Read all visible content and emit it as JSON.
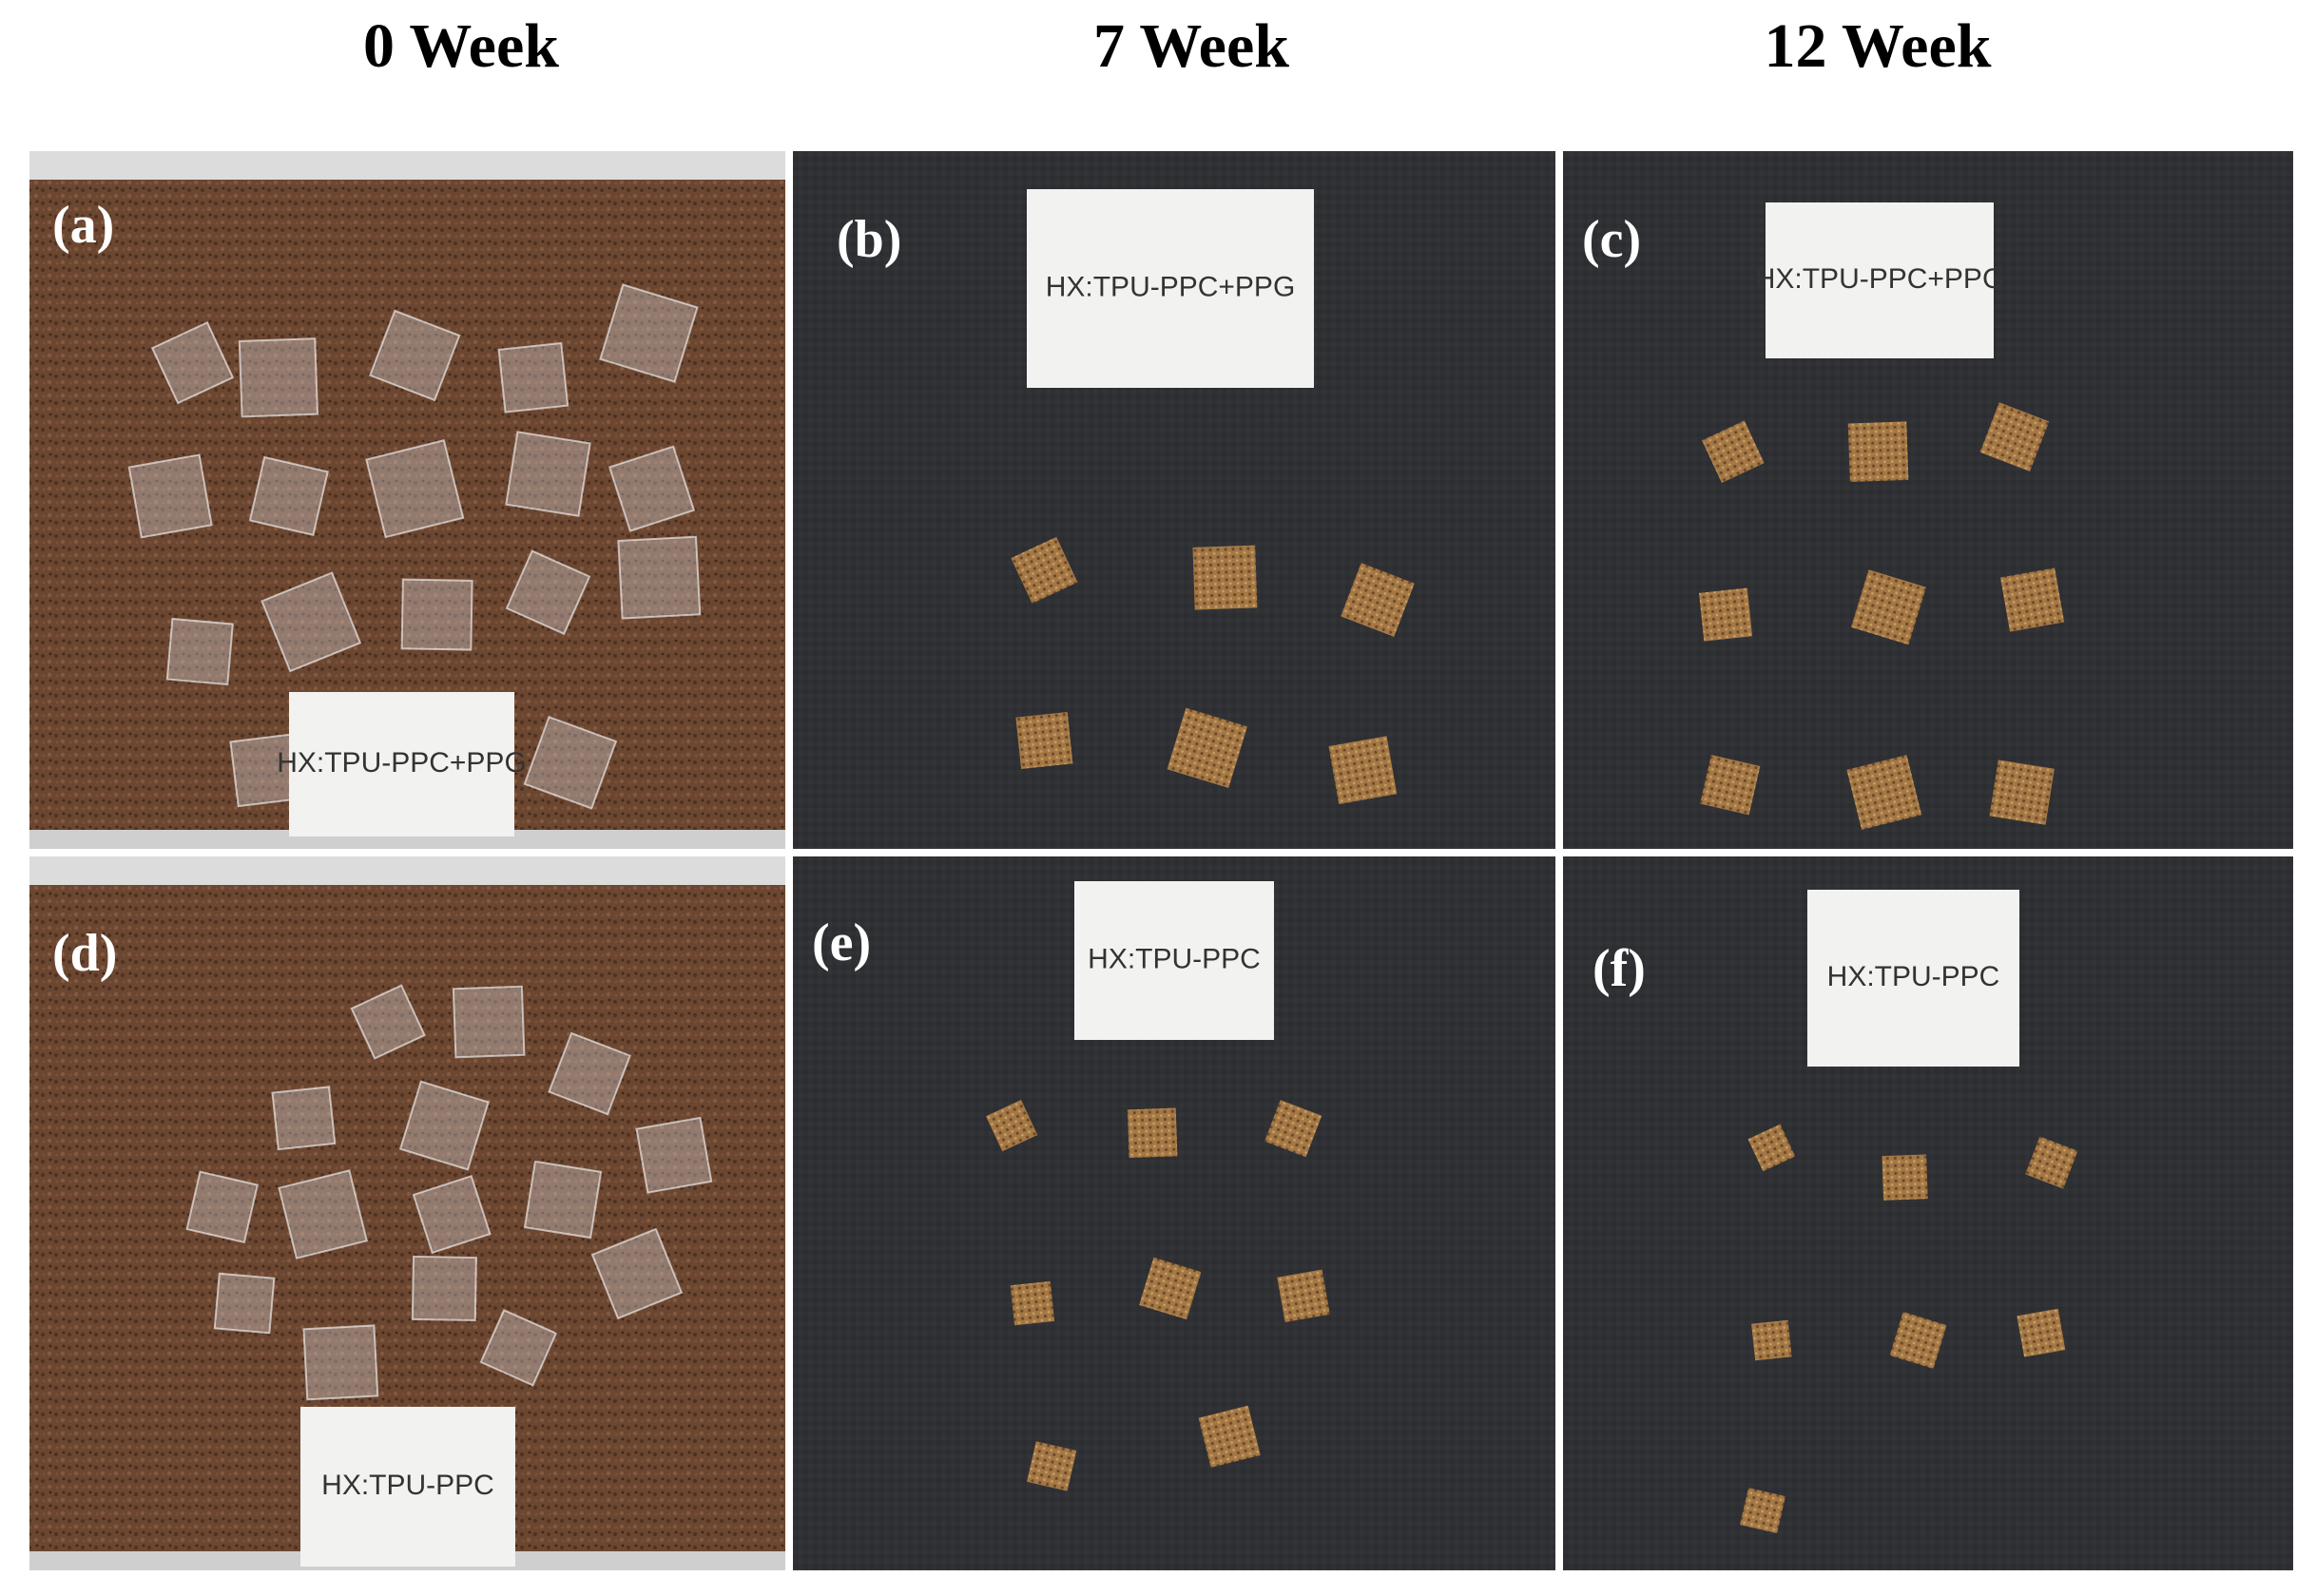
{
  "columns": [
    "0 Week",
    "7 Week",
    "12 Week"
  ],
  "panels": [
    {
      "label": "(a)",
      "card": "HX:TPU-PPC+PPG"
    },
    {
      "label": "(b)",
      "card": "HX:TPU-PPC+PPG"
    },
    {
      "label": "(c)",
      "card": "HX:TPU-PPC+PPG"
    },
    {
      "label": "(d)",
      "card": "HX:TPU-PPC"
    },
    {
      "label": "(e)",
      "card": "HX:TPU-PPC"
    },
    {
      "label": "(f)",
      "card": "HX:TPU-PPC"
    }
  ]
}
